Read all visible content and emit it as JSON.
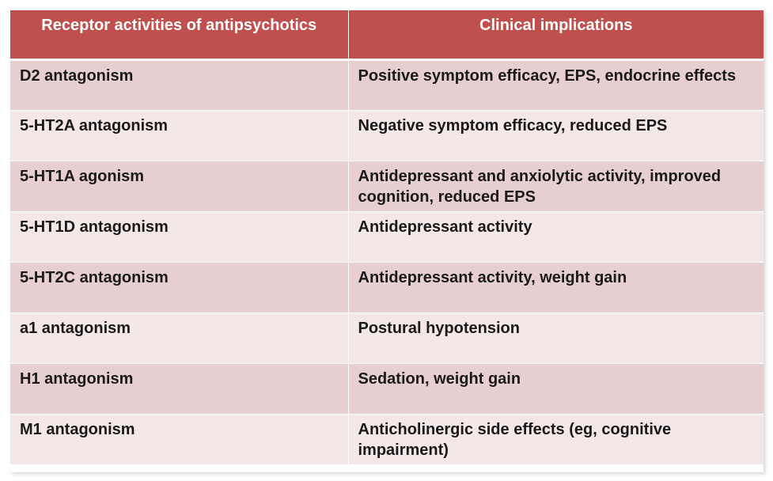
{
  "table": {
    "headers": [
      "Receptor activities of antipsychotics",
      "Clinical implications"
    ],
    "rows": [
      [
        "D2 antagonism",
        "Positive symptom efficacy, EPS, endocrine effects"
      ],
      [
        "5-HT2A antagonism",
        "Negative symptom efficacy, reduced EPS"
      ],
      [
        "5-HT1A agonism",
        "Antidepressant and anxiolytic activity, improved cognition, reduced EPS"
      ],
      [
        "5-HT1D antagonism",
        "Antidepressant activity"
      ],
      [
        "5-HT2C antagonism",
        "Antidepressant activity, weight gain"
      ],
      [
        "a1 antagonism",
        "Postural hypotension"
      ],
      [
        "H1 antagonism",
        "Sedation, weight gain"
      ],
      [
        "M1 antagonism",
        "Anticholinergic side effects (eg, cognitive impairment)"
      ]
    ]
  },
  "colors": {
    "header_bg": "#c0504d",
    "row_dark": "#e8cfcf",
    "row_light": "#f3e7e7"
  }
}
